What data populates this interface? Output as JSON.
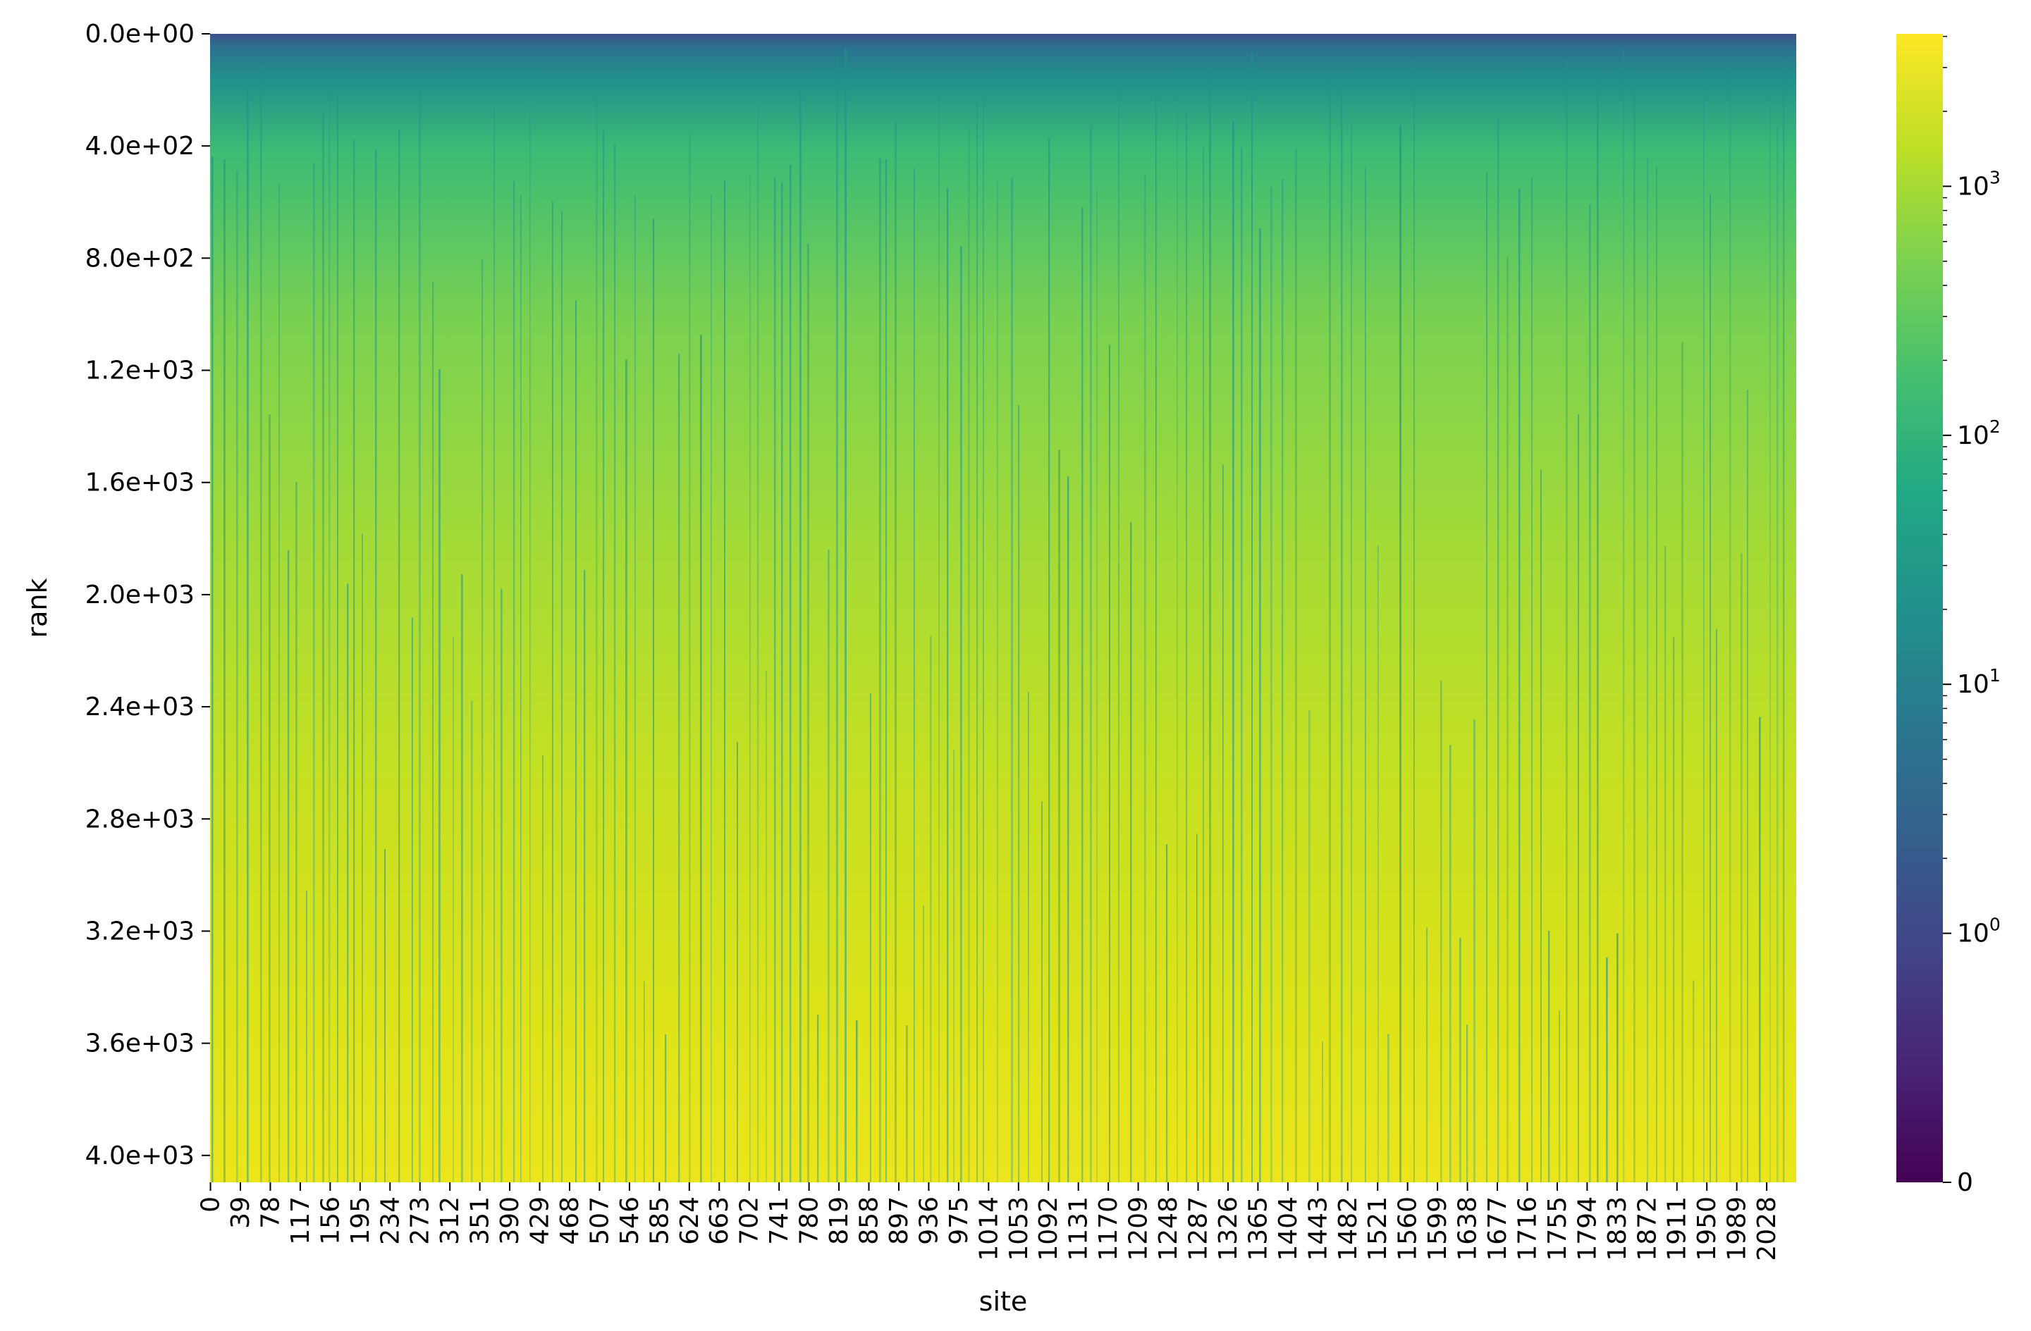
{
  "chart_data": {
    "type": "heatmap",
    "xlabel": "site",
    "ylabel": "rank",
    "x_tick_labels": [
      "0",
      "39",
      "78",
      "117",
      "156",
      "195",
      "234",
      "273",
      "312",
      "351",
      "390",
      "429",
      "468",
      "507",
      "546",
      "585",
      "624",
      "663",
      "702",
      "741",
      "780",
      "819",
      "858",
      "897",
      "936",
      "975",
      "1014",
      "1053",
      "1092",
      "1131",
      "1170",
      "1209",
      "1248",
      "1287",
      "1326",
      "1365",
      "1404",
      "1443",
      "1482",
      "1521",
      "1560",
      "1599",
      "1638",
      "1677",
      "1716",
      "1755",
      "1794",
      "1833",
      "1872",
      "1911",
      "1950",
      "1989",
      "2028"
    ],
    "x_tick_values": [
      0,
      39,
      78,
      117,
      156,
      195,
      234,
      273,
      312,
      351,
      390,
      429,
      468,
      507,
      546,
      585,
      624,
      663,
      702,
      741,
      780,
      819,
      858,
      897,
      936,
      975,
      1014,
      1053,
      1092,
      1131,
      1170,
      1209,
      1248,
      1287,
      1326,
      1365,
      1404,
      1443,
      1482,
      1521,
      1560,
      1599,
      1638,
      1677,
      1716,
      1755,
      1794,
      1833,
      1872,
      1911,
      1950,
      1989,
      2028
    ],
    "xlim": [
      0,
      2067
    ],
    "y_tick_labels": [
      "0.0e+00",
      "4.0e+02",
      "8.0e+02",
      "1.2e+03",
      "1.6e+03",
      "2.0e+03",
      "2.4e+03",
      "2.8e+03",
      "3.2e+03",
      "3.6e+03",
      "4.0e+03"
    ],
    "y_tick_values": [
      0,
      400,
      800,
      1200,
      1600,
      2000,
      2400,
      2800,
      3200,
      3600,
      4000
    ],
    "ylim": [
      0,
      4096
    ],
    "y_inverted": true,
    "colormap": "viridis",
    "colorbar": {
      "scale": "symlog",
      "range": [
        0,
        4096
      ],
      "tick_values": [
        0,
        1,
        10,
        100,
        1000
      ],
      "tick_bases": [
        "0",
        "10",
        "10",
        "10",
        "10"
      ],
      "tick_exponents": [
        "",
        "0",
        "1",
        "2",
        "3"
      ]
    },
    "value_trend": "cell value approximately equals rank, increasing from ~1 at rank 0 to ~4000 at the bottom, with frequent thin darker vertical streaks across sites"
  }
}
